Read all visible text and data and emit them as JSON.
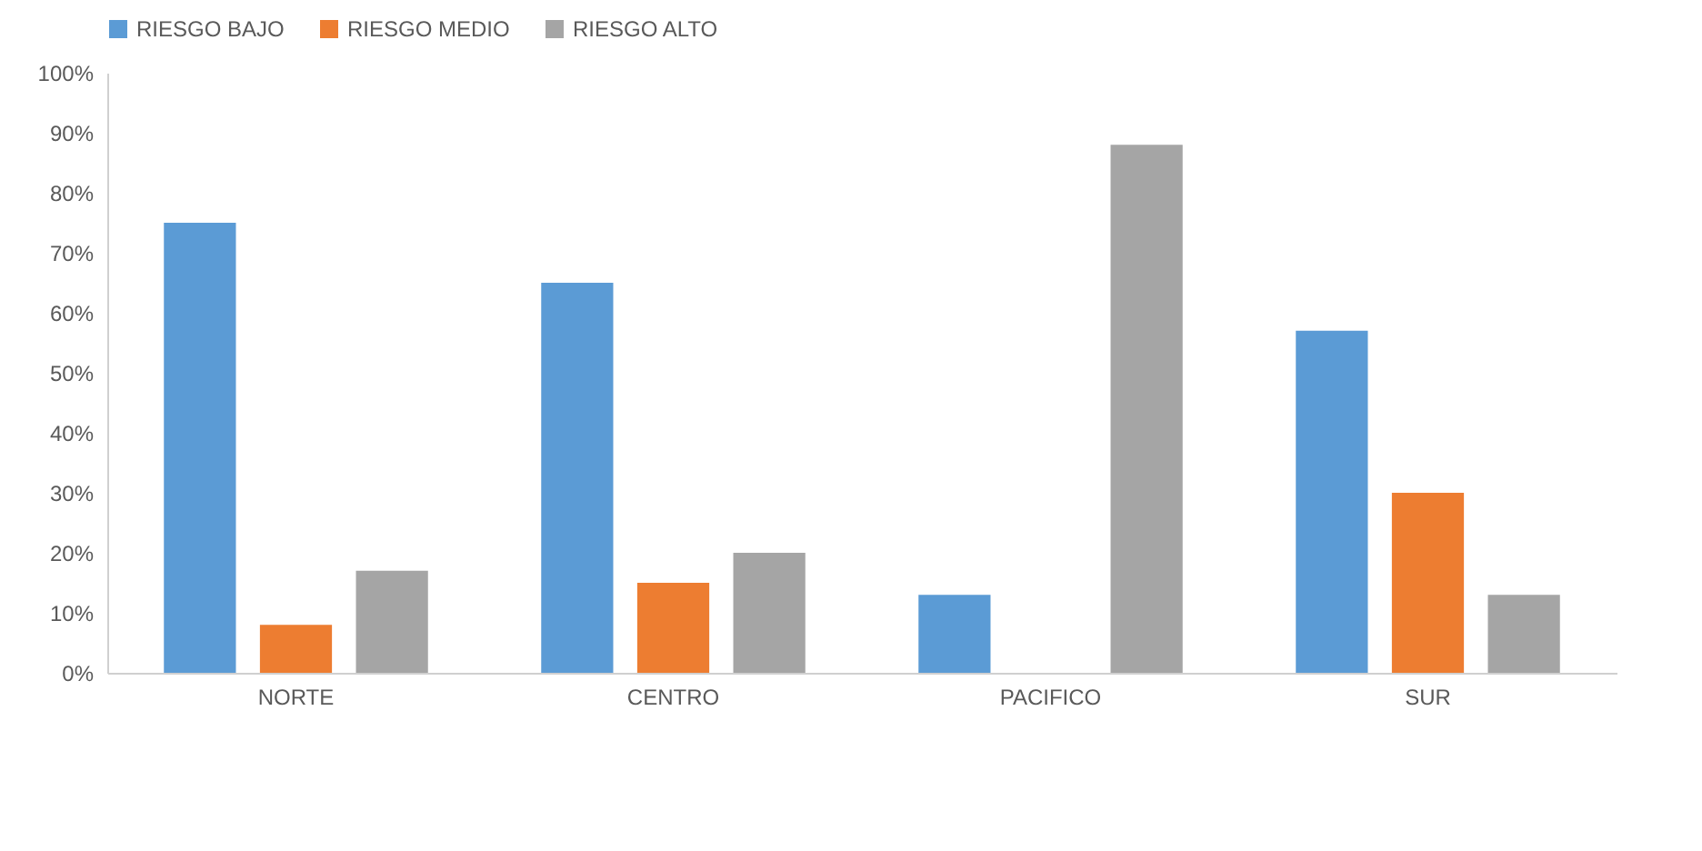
{
  "chart_data": {
    "type": "bar",
    "categories": [
      "NORTE",
      "CENTRO",
      "PACIFICO",
      "SUR"
    ],
    "series": [
      {
        "name": "RIESGO BAJO",
        "color": "#5b9bd5",
        "values": [
          75,
          65,
          13,
          57
        ]
      },
      {
        "name": "RIESGO MEDIO",
        "color": "#ed7d31",
        "values": [
          8,
          15,
          0,
          30
        ]
      },
      {
        "name": "RIESGO ALTO",
        "color": "#a5a5a5",
        "values": [
          17,
          20,
          88,
          13
        ]
      }
    ],
    "ylim": [
      0,
      100
    ],
    "yticks": [
      {
        "value": 0,
        "label": "0%"
      },
      {
        "value": 10,
        "label": "10%"
      },
      {
        "value": 20,
        "label": "20%"
      },
      {
        "value": 30,
        "label": "30%"
      },
      {
        "value": 40,
        "label": "40%"
      },
      {
        "value": 50,
        "label": "50%"
      },
      {
        "value": 60,
        "label": "60%"
      },
      {
        "value": 70,
        "label": "70%"
      },
      {
        "value": 80,
        "label": "80%"
      },
      {
        "value": 90,
        "label": "90%"
      },
      {
        "value": 100,
        "label": "100%"
      }
    ],
    "grid": false,
    "legend": "top"
  }
}
